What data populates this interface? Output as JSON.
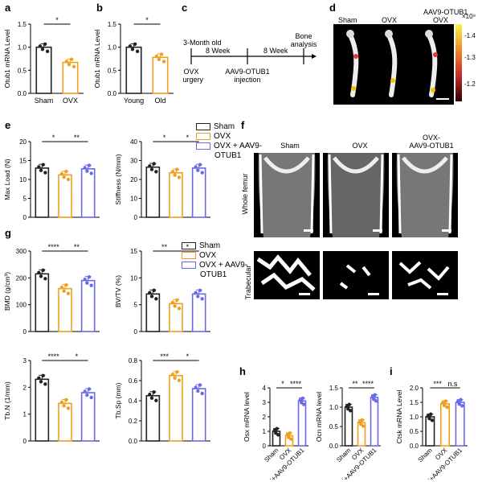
{
  "panel_letters": {
    "a": "a",
    "b": "b",
    "c": "c",
    "d": "d",
    "e": "e",
    "f": "f",
    "g": "g",
    "h": "h",
    "i": "i"
  },
  "colors": {
    "sham": "#222222",
    "ovx": "#f0a020",
    "aav": "#6a6ae8"
  },
  "legend_e": {
    "items": [
      "Sham",
      "OVX",
      "OVX + AAV9-",
      "OTUB1"
    ]
  },
  "legend_g": {
    "items": [
      "Sham",
      "OVX",
      "OVX + AAV9-",
      "OTUB1"
    ]
  },
  "timeline": {
    "start": "3-Month old",
    "interval1": "8 Week",
    "interval2": "8 Week",
    "step1_line1": "OVX",
    "step1_line2": "surgery",
    "step2_line1": "AAV9-OTUB1",
    "step2_line2": "injection",
    "step3_line1": "Bone",
    "step3_line2": "analysis"
  },
  "panel_d": {
    "labels": [
      "Sham",
      "OVX",
      "AAV9-OTUB1",
      "OVX"
    ],
    "colorbar_unit": "×10⁹",
    "colorbar_ticks": [
      "-1.4",
      "-1.3",
      "-1.2"
    ]
  },
  "panel_f": {
    "col_labels": [
      "Sham",
      "OVX",
      "OVX-",
      "AAV9-OTUB1"
    ],
    "row_labels": [
      "Whole femur",
      "Trabecular"
    ]
  },
  "chart_data": [
    {
      "id": "a",
      "type": "bar",
      "title": "",
      "ylabel": "Otub1 mRNA Level",
      "categories": [
        "Sham",
        "OVX"
      ],
      "values": [
        1.0,
        0.67
      ],
      "ylim": [
        0,
        1.5
      ],
      "yticks": [
        "0.0",
        "0.5",
        "1.0",
        "1.5"
      ],
      "sig": [
        "*"
      ]
    },
    {
      "id": "b",
      "type": "bar",
      "title": "",
      "ylabel": "Otub1 mRNA Level",
      "categories": [
        "Young",
        "Old"
      ],
      "values": [
        1.0,
        0.78
      ],
      "ylim": [
        0,
        1.5
      ],
      "yticks": [
        "0.0",
        "0.5",
        "1.0",
        "1.5"
      ],
      "sig": [
        "*"
      ]
    },
    {
      "id": "e1",
      "type": "bar",
      "ylabel": "Max Load (N)",
      "categories": [
        "Sham",
        "OVX",
        "OVX + AAV9-OTUB1"
      ],
      "values": [
        13.0,
        11.2,
        12.8
      ],
      "ylim": [
        0,
        20
      ],
      "yticks": [
        "0",
        "5",
        "10",
        "15",
        "20"
      ],
      "sig": [
        "*",
        "**"
      ]
    },
    {
      "id": "e2",
      "type": "bar",
      "ylabel": "Stiffness (N/mm)",
      "categories": [
        "Sham",
        "OVX",
        "OVX + AAV9-OTUB1"
      ],
      "values": [
        26.5,
        23.5,
        26.0
      ],
      "ylim": [
        0,
        40
      ],
      "yticks": [
        "0",
        "10",
        "20",
        "30",
        "40"
      ],
      "sig": [
        "*",
        "*"
      ]
    },
    {
      "id": "g1",
      "type": "bar",
      "ylabel": "BMD (g/cm³)",
      "categories": [
        "Sham",
        "OVX",
        "OVX + AAV9-OTUB1"
      ],
      "values": [
        215,
        160,
        190
      ],
      "ylim": [
        0,
        300
      ],
      "yticks": [
        "0",
        "100",
        "200",
        "300"
      ],
      "sig": [
        "****",
        "**"
      ]
    },
    {
      "id": "g2",
      "type": "bar",
      "ylabel": "BV/TV (%)",
      "categories": [
        "Sham",
        "OVX",
        "OVX + AAV9-OTUB1"
      ],
      "values": [
        7.0,
        5.2,
        7.0
      ],
      "ylim": [
        0,
        15
      ],
      "yticks": [
        "0",
        "5",
        "10",
        "15"
      ],
      "sig": [
        "**",
        "*"
      ]
    },
    {
      "id": "g3",
      "type": "bar",
      "ylabel": "Tb.N (1/mm)",
      "categories": [
        "Sham",
        "OVX",
        "OVX + AAV9-OTUB1"
      ],
      "values": [
        2.3,
        1.4,
        1.8
      ],
      "ylim": [
        0,
        3
      ],
      "yticks": [
        "0",
        "1",
        "2",
        "3"
      ],
      "sig": [
        "****",
        "*"
      ]
    },
    {
      "id": "g4",
      "type": "bar",
      "ylabel": "Tb.Sp (mm)",
      "categories": [
        "Sham",
        "OVX",
        "OVX + AAV9-OTUB1"
      ],
      "values": [
        0.45,
        0.65,
        0.52
      ],
      "ylim": [
        0,
        0.8
      ],
      "yticks": [
        "0.0",
        "0.2",
        "0.4",
        "0.6",
        "0.8"
      ],
      "sig": [
        "***",
        "*"
      ]
    },
    {
      "id": "h1",
      "type": "bar",
      "ylabel": "Osx mRNA level",
      "categories": [
        "Sham",
        "OVX",
        "OVX+AAV9-OTUB1"
      ],
      "values": [
        1.0,
        0.7,
        3.1
      ],
      "ylim": [
        0,
        4
      ],
      "yticks": [
        "0",
        "1",
        "2",
        "3",
        "4"
      ],
      "sig": [
        "*",
        "****"
      ]
    },
    {
      "id": "h2",
      "type": "bar",
      "ylabel": "Ocn mRNA level",
      "categories": [
        "Sham",
        "OVX",
        "OVX+AAV9-OTUB1"
      ],
      "values": [
        1.0,
        0.6,
        1.25
      ],
      "ylim": [
        0,
        1.5
      ],
      "yticks": [
        "0.0",
        "0.5",
        "1.0",
        "1.5"
      ],
      "sig": [
        "**",
        "****"
      ]
    },
    {
      "id": "i",
      "type": "bar",
      "ylabel": "Ctsk mRNA Level",
      "categories": [
        "Sham",
        "OVX",
        "OVX+AAV9-OTUB1"
      ],
      "values": [
        1.0,
        1.45,
        1.5
      ],
      "ylim": [
        0,
        2
      ],
      "yticks": [
        "0.0",
        "0.5",
        "1.0",
        "1.5",
        "2.0"
      ],
      "sig": [
        "***",
        "n.s"
      ]
    }
  ]
}
